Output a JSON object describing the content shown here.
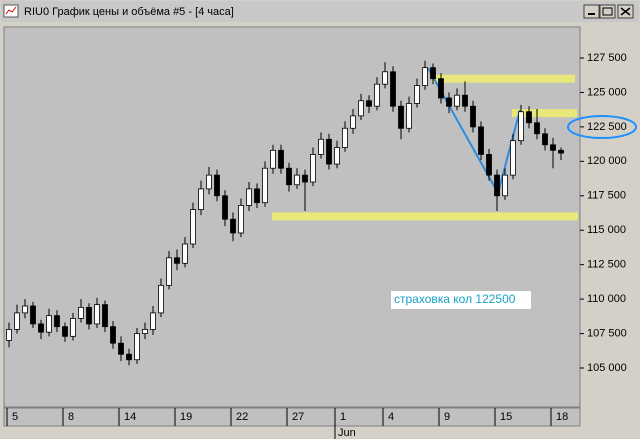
{
  "chart_data": {
    "type": "candlestick",
    "title": "RIU0 График цены и объёма #5 - [4 часа]",
    "annotation": "страховка кол 122500",
    "month_label": "Jun",
    "categories": [
      "5",
      null,
      null,
      null,
      null,
      null,
      null,
      "8",
      null,
      null,
      null,
      null,
      null,
      null,
      "14",
      null,
      null,
      null,
      null,
      null,
      null,
      "19",
      null,
      null,
      null,
      null,
      null,
      null,
      "22",
      null,
      null,
      null,
      null,
      null,
      null,
      "27",
      null,
      null,
      null,
      null,
      null,
      "1",
      null,
      null,
      null,
      null,
      null,
      "4",
      null,
      null,
      null,
      null,
      null,
      null,
      "9",
      null,
      null,
      null,
      null,
      null,
      null,
      "15",
      null,
      null,
      null,
      null,
      null,
      null,
      "18",
      null
    ],
    "open": [
      107000,
      107800,
      109000,
      109500,
      108200,
      107600,
      108800,
      108000,
      107300,
      108600,
      109400,
      108200,
      109600,
      108000,
      106800,
      106000,
      105600,
      107500,
      107800,
      109000,
      111000,
      113000,
      112600,
      114000,
      116500,
      118000,
      119000,
      117500,
      115800,
      114800,
      116800,
      118000,
      117000,
      119500,
      120800,
      119500,
      118300,
      119000,
      118500,
      120500,
      121600,
      119800,
      121000,
      122400,
      123300,
      124400,
      124000,
      125600,
      126500,
      124000,
      122400,
      124200,
      125500,
      126800,
      126000,
      124600,
      124000,
      124800,
      124000,
      122500,
      120500,
      119000,
      117500,
      119000,
      121500,
      123600,
      122800,
      122000,
      121200,
      120800
    ],
    "high": [
      108300,
      109600,
      110000,
      109800,
      108500,
      109300,
      109200,
      108300,
      109000,
      110000,
      109700,
      110100,
      109900,
      108400,
      107300,
      106400,
      107900,
      108300,
      109500,
      111500,
      113500,
      113600,
      114500,
      117000,
      118600,
      119600,
      119400,
      117900,
      116300,
      117300,
      118500,
      118400,
      120000,
      121200,
      121200,
      119900,
      119500,
      119400,
      121000,
      122100,
      122000,
      121500,
      122900,
      123800,
      124900,
      124800,
      126100,
      127200,
      126900,
      124400,
      124700,
      126000,
      127300,
      127100,
      126400,
      125000,
      125300,
      125800,
      124400,
      122900,
      120900,
      119400,
      119500,
      122000,
      124100,
      124000,
      123800,
      122400,
      121700,
      121000
    ],
    "low": [
      106500,
      107500,
      108600,
      107900,
      107100,
      107300,
      107600,
      106900,
      107000,
      108300,
      107800,
      107900,
      107600,
      106400,
      105500,
      105200,
      105300,
      107100,
      107400,
      108700,
      110700,
      112100,
      112300,
      113700,
      116100,
      117600,
      117100,
      115300,
      114200,
      114500,
      116400,
      116600,
      116700,
      119100,
      119100,
      117800,
      118000,
      116400,
      118200,
      120200,
      119400,
      119500,
      120700,
      122000,
      123000,
      123500,
      123700,
      125300,
      123600,
      121600,
      122100,
      123900,
      125200,
      125600,
      124200,
      123500,
      123700,
      123600,
      122100,
      120100,
      118600,
      116400,
      117200,
      118700,
      121200,
      122400,
      121600,
      120800,
      119500,
      120100
    ],
    "close": [
      107800,
      109000,
      109500,
      108200,
      107600,
      108800,
      108000,
      107300,
      108600,
      109400,
      108200,
      109600,
      108000,
      106800,
      106000,
      105600,
      107500,
      107800,
      109000,
      111000,
      113000,
      112600,
      114000,
      116500,
      118000,
      119000,
      117500,
      115800,
      114800,
      116800,
      118000,
      117000,
      119500,
      120800,
      119500,
      118300,
      119000,
      118500,
      120500,
      121600,
      119800,
      121000,
      122400,
      123300,
      124400,
      124000,
      125600,
      126500,
      124000,
      122400,
      124200,
      125500,
      126800,
      126000,
      124600,
      124000,
      124800,
      124000,
      122500,
      120500,
      119000,
      117500,
      119000,
      121500,
      123600,
      122800,
      122000,
      121200,
      120800,
      120600
    ],
    "levels": [
      126000,
      123500,
      116000
    ],
    "level_color": "#e8e87a",
    "up_color": "#ffffff",
    "down_color": "#000000",
    "ylim": [
      102170,
      129750
    ],
    "yticks": [
      {
        "value": 105000,
        "label": "105 000"
      },
      {
        "value": 107500,
        "label": "107 500"
      },
      {
        "value": 110000,
        "label": "110 000"
      },
      {
        "value": 112500,
        "label": "112 500"
      },
      {
        "value": 115000,
        "label": "115 000"
      },
      {
        "value": 117500,
        "label": "117 500"
      },
      {
        "value": 120000,
        "label": "120 000"
      },
      {
        "value": 122500,
        "label": "122 500"
      },
      {
        "value": 125000,
        "label": "125 000"
      },
      {
        "value": 127500,
        "label": "127 500"
      }
    ],
    "grid": false
  }
}
